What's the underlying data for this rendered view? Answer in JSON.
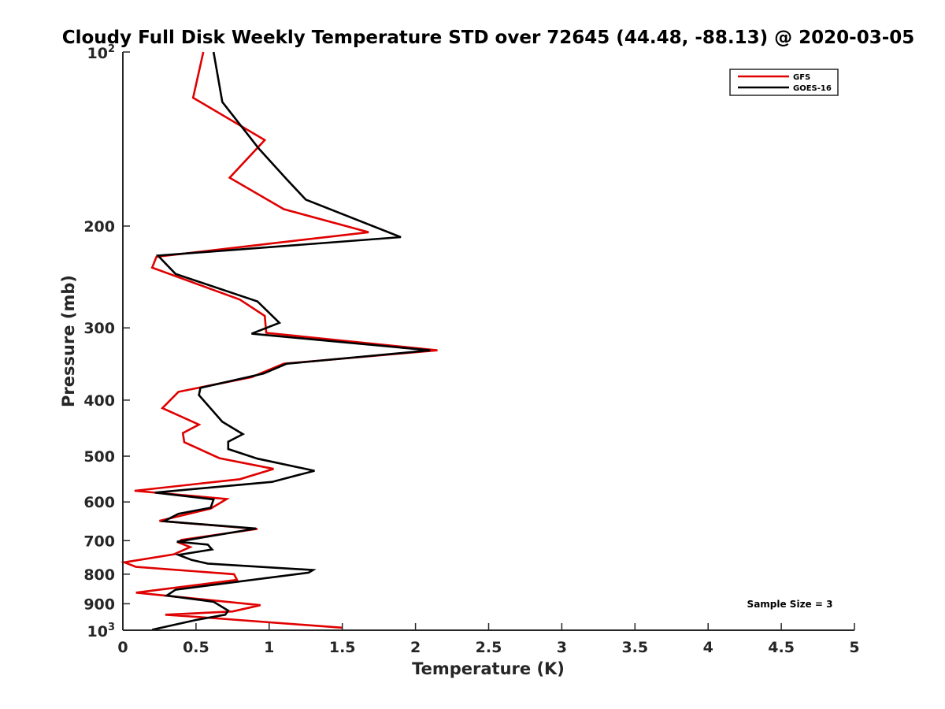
{
  "chart_data": {
    "type": "line",
    "title": "Cloudy Full Disk Weekly Temperature STD over 72645 (44.48, -88.13) @ 2020-03-05",
    "xlabel": "Temperature (K)",
    "ylabel": "Pressure (mb)",
    "xlim": [
      0,
      5
    ],
    "ylim": [
      100,
      1000
    ],
    "y_scale": "log",
    "y_reversed": true,
    "x_ticks": [
      "0",
      "0.5",
      "1",
      "1.5",
      "2",
      "2.5",
      "3",
      "3.5",
      "4",
      "4.5",
      "5"
    ],
    "y_ticks": [
      {
        "value": 100,
        "base": "10",
        "exp": "2"
      },
      {
        "value": 200,
        "label": "200"
      },
      {
        "value": 300,
        "label": "300"
      },
      {
        "value": 400,
        "label": "400"
      },
      {
        "value": 500,
        "label": "500"
      },
      {
        "value": 600,
        "label": "600"
      },
      {
        "value": 700,
        "label": "700"
      },
      {
        "value": 800,
        "label": "800"
      },
      {
        "value": 900,
        "label": "900"
      },
      {
        "value": 1000,
        "base": "10",
        "exp": "3"
      }
    ],
    "legend_position": "top-right",
    "annotation": "Sample Size = 3",
    "series": [
      {
        "name": "GFS",
        "color": "#e00000",
        "points": [
          [
            0.55,
            100
          ],
          [
            0.48,
            120
          ],
          [
            0.97,
            142
          ],
          [
            0.73,
            165
          ],
          [
            1.1,
            187
          ],
          [
            1.68,
            205
          ],
          [
            0.23,
            226
          ],
          [
            0.2,
            236
          ],
          [
            0.8,
            268
          ],
          [
            0.97,
            286
          ],
          [
            0.98,
            306
          ],
          [
            2.15,
            328
          ],
          [
            1.1,
            346
          ],
          [
            0.88,
            365
          ],
          [
            0.38,
            387
          ],
          [
            0.27,
            413
          ],
          [
            0.52,
            441
          ],
          [
            0.41,
            456
          ],
          [
            0.42,
            473
          ],
          [
            0.66,
            504
          ],
          [
            1.03,
            526
          ],
          [
            0.8,
            548
          ],
          [
            0.08,
            574
          ],
          [
            0.71,
            593
          ],
          [
            0.6,
            616
          ],
          [
            0.25,
            647
          ],
          [
            0.92,
            668
          ],
          [
            0.4,
            698
          ],
          [
            0.38,
            705
          ],
          [
            0.46,
            718
          ],
          [
            0.35,
            739
          ],
          [
            0.01,
            763
          ],
          [
            0.09,
            777
          ],
          [
            0.76,
            800
          ],
          [
            0.78,
            818
          ],
          [
            0.33,
            846
          ],
          [
            0.09,
            861
          ],
          [
            0.94,
            905
          ],
          [
            0.75,
            928
          ],
          [
            0.29,
            940
          ],
          [
            0.5,
            948
          ],
          [
            1.5,
            990
          ]
        ]
      },
      {
        "name": "GOES-16",
        "color": "#000000",
        "points": [
          [
            0.62,
            100
          ],
          [
            0.68,
            122
          ],
          [
            0.93,
            147
          ],
          [
            1.12,
            166
          ],
          [
            1.25,
            180
          ],
          [
            1.9,
            209
          ],
          [
            0.24,
            225
          ],
          [
            0.36,
            242
          ],
          [
            0.92,
            270
          ],
          [
            1.07,
            294
          ],
          [
            0.88,
            307
          ],
          [
            2.1,
            328
          ],
          [
            1.12,
            346
          ],
          [
            0.96,
            360
          ],
          [
            0.53,
            381
          ],
          [
            0.52,
            392
          ],
          [
            0.68,
            436
          ],
          [
            0.82,
            458
          ],
          [
            0.72,
            472
          ],
          [
            0.72,
            486
          ],
          [
            0.92,
            505
          ],
          [
            1.31,
            530
          ],
          [
            1.02,
            554
          ],
          [
            0.22,
            578
          ],
          [
            0.62,
            594
          ],
          [
            0.6,
            614
          ],
          [
            0.38,
            629
          ],
          [
            0.28,
            648
          ],
          [
            0.91,
            667
          ],
          [
            0.37,
            703
          ],
          [
            0.58,
            711
          ],
          [
            0.61,
            725
          ],
          [
            0.38,
            741
          ],
          [
            0.47,
            756
          ],
          [
            0.58,
            767
          ],
          [
            1.3,
            787
          ],
          [
            1.27,
            795
          ],
          [
            0.36,
            851
          ],
          [
            0.3,
            871
          ],
          [
            0.62,
            893
          ],
          [
            0.72,
            925
          ],
          [
            0.7,
            940
          ],
          [
            0.5,
            960
          ],
          [
            0.2,
            998
          ]
        ]
      }
    ]
  }
}
